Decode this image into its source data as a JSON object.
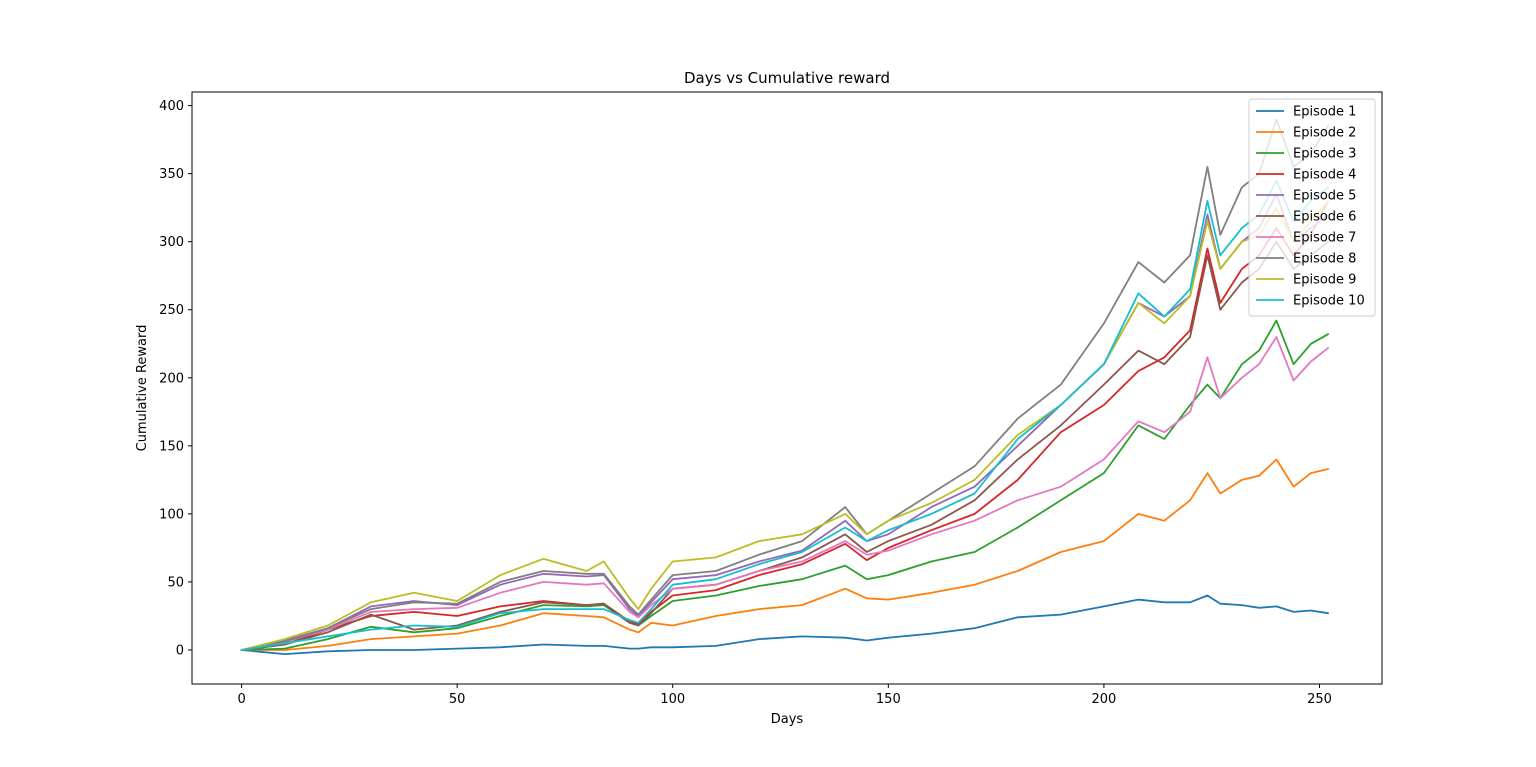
{
  "chart_data": {
    "type": "line",
    "title": "Days vs Cumulative reward",
    "xlabel": "Days",
    "ylabel": "Cumulative Reward",
    "xlim": [
      -11.5,
      264.5
    ],
    "ylim": [
      -25,
      410
    ],
    "xticks": [
      0,
      50,
      100,
      150,
      200,
      250
    ],
    "yticks": [
      0,
      50,
      100,
      150,
      200,
      250,
      300,
      350,
      400
    ],
    "grid": false,
    "legend_position": "top-right",
    "x": [
      0,
      10,
      20,
      30,
      40,
      50,
      60,
      70,
      80,
      84,
      90,
      92,
      95,
      100,
      110,
      120,
      130,
      140,
      145,
      150,
      160,
      170,
      180,
      190,
      200,
      208,
      214,
      220,
      224,
      227,
      232,
      236,
      240,
      244,
      248,
      252
    ],
    "series": [
      {
        "name": "Episode 1",
        "color": "#1f77b4",
        "values": [
          0,
          -3,
          -1,
          0,
          0,
          1,
          2,
          4,
          3,
          3,
          1,
          1,
          2,
          2,
          3,
          8,
          10,
          9,
          7,
          9,
          12,
          16,
          24,
          26,
          32,
          37,
          35,
          35,
          40,
          34,
          33,
          31,
          32,
          28,
          29,
          27
        ]
      },
      {
        "name": "Episode 2",
        "color": "#ff7f0e",
        "values": [
          0,
          0,
          3,
          8,
          10,
          12,
          18,
          27,
          25,
          24,
          15,
          13,
          20,
          18,
          25,
          30,
          33,
          45,
          38,
          37,
          42,
          48,
          58,
          72,
          80,
          100,
          95,
          110,
          130,
          115,
          125,
          128,
          140,
          120,
          130,
          133
        ]
      },
      {
        "name": "Episode 3",
        "color": "#2ca02c",
        "values": [
          0,
          1,
          8,
          17,
          13,
          16,
          25,
          33,
          32,
          33,
          20,
          18,
          25,
          36,
          40,
          47,
          52,
          62,
          52,
          55,
          65,
          72,
          90,
          110,
          130,
          165,
          155,
          180,
          195,
          185,
          210,
          220,
          242,
          210,
          225,
          232
        ]
      },
      {
        "name": "Episode 4",
        "color": "#d62728",
        "values": [
          0,
          4,
          15,
          25,
          28,
          25,
          32,
          36,
          33,
          34,
          21,
          19,
          28,
          40,
          44,
          55,
          63,
          78,
          66,
          75,
          88,
          100,
          125,
          160,
          180,
          205,
          215,
          235,
          295,
          255,
          280,
          290,
          310,
          290,
          305,
          330
        ]
      },
      {
        "name": "Episode 5",
        "color": "#9467bd",
        "values": [
          0,
          7,
          16,
          32,
          36,
          33,
          48,
          56,
          54,
          55,
          30,
          25,
          35,
          52,
          55,
          65,
          73,
          95,
          80,
          85,
          105,
          120,
          150,
          180,
          210,
          255,
          245,
          260,
          320,
          280,
          300,
          310,
          335,
          300,
          310,
          320
        ]
      },
      {
        "name": "Episode 6",
        "color": "#8c564b",
        "values": [
          0,
          4,
          13,
          26,
          15,
          18,
          28,
          35,
          33,
          34,
          20,
          18,
          27,
          45,
          48,
          58,
          68,
          85,
          72,
          80,
          92,
          110,
          140,
          165,
          195,
          220,
          210,
          230,
          290,
          250,
          270,
          280,
          300,
          280,
          290,
          300
        ]
      },
      {
        "name": "Episode 7",
        "color": "#e377c2",
        "values": [
          0,
          6,
          15,
          28,
          30,
          31,
          42,
          50,
          48,
          49,
          28,
          24,
          33,
          45,
          48,
          58,
          65,
          80,
          70,
          73,
          85,
          95,
          110,
          120,
          140,
          168,
          160,
          175,
          215,
          185,
          200,
          210,
          230,
          198,
          212,
          222
        ]
      },
      {
        "name": "Episode 8",
        "color": "#7f7f7f",
        "values": [
          0,
          6,
          16,
          30,
          35,
          34,
          50,
          58,
          56,
          56,
          32,
          26,
          37,
          55,
          58,
          70,
          80,
          105,
          85,
          95,
          115,
          135,
          170,
          195,
          240,
          285,
          270,
          290,
          355,
          305,
          340,
          350,
          390,
          355,
          365,
          385
        ]
      },
      {
        "name": "Episode 9",
        "color": "#bcbd22",
        "values": [
          0,
          8,
          18,
          35,
          42,
          36,
          55,
          67,
          58,
          65,
          38,
          30,
          45,
          65,
          68,
          80,
          85,
          100,
          85,
          95,
          108,
          125,
          158,
          180,
          210,
          255,
          240,
          260,
          315,
          280,
          300,
          305,
          325,
          300,
          315,
          330
        ]
      },
      {
        "name": "Episode 10",
        "color": "#17becf",
        "values": [
          0,
          5,
          10,
          15,
          18,
          17,
          27,
          30,
          30,
          30,
          22,
          20,
          30,
          48,
          52,
          63,
          72,
          90,
          80,
          88,
          100,
          115,
          155,
          180,
          210,
          262,
          245,
          265,
          330,
          290,
          310,
          320,
          345,
          315,
          330,
          340
        ]
      }
    ]
  }
}
